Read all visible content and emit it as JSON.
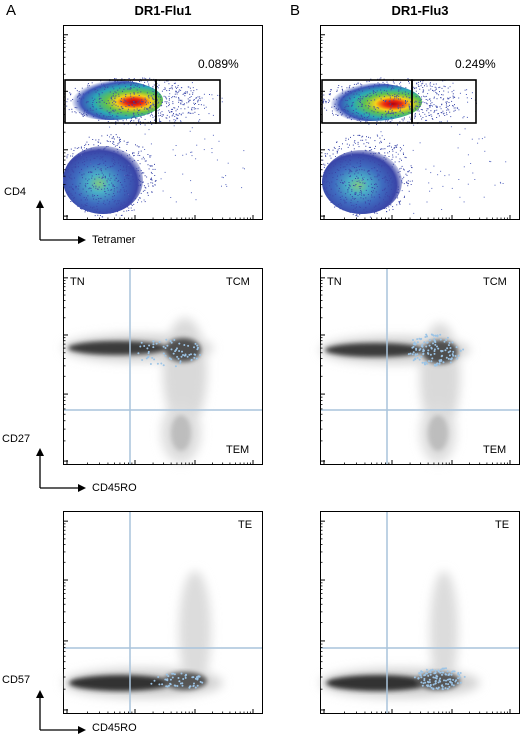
{
  "panels": {
    "a": "A",
    "b": "B"
  },
  "columns": [
    {
      "title": "DR1-Flu1",
      "gate_pct": "0.089%"
    },
    {
      "title": "DR1-Flu3",
      "gate_pct": "0.249%"
    }
  ],
  "row1": {
    "ylabel": "CD4",
    "xlabel": "Tetramer"
  },
  "row2": {
    "ylabel": "CD27",
    "xlabel": "CD45RO",
    "q_tl": "TN",
    "q_tr": "TCM",
    "q_br": "TEM"
  },
  "row3": {
    "ylabel": "CD57",
    "xlabel": "CD45RO",
    "q_tr": "TE"
  },
  "colors": {
    "quadrant_line": "#a9c4dc",
    "gate": "#000000",
    "hot": "#cc1111",
    "cold": "#3344aa",
    "dots": "#9cc4e6"
  }
}
